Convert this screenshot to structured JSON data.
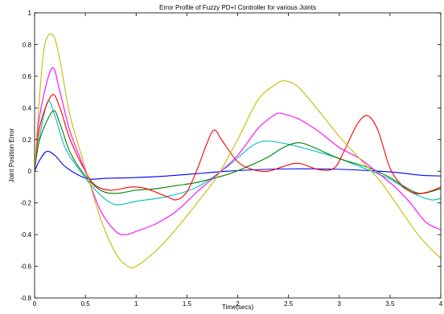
{
  "chart_data": {
    "type": "line",
    "title": "Error Profile of Fuzzy PD+I  Controller for various Joints",
    "xlabel": "Time(secs)",
    "ylabel": "Joint Position Error",
    "xlim": [
      0,
      4
    ],
    "ylim": [
      -0.8,
      1
    ],
    "xticks": [
      0,
      0.5,
      1,
      1.5,
      2,
      2.5,
      3,
      3.5,
      4
    ],
    "xtick_labels": [
      "0",
      "0.5",
      "1",
      "1.5",
      "2",
      "2.5",
      "3",
      "3.5",
      "4"
    ],
    "yticks": [
      -0.8,
      -0.6,
      -0.4,
      -0.2,
      0,
      0.2,
      0.4,
      0.6,
      0.8,
      1
    ],
    "ytick_labels": [
      "-0.8",
      "-0.6",
      "-0.4",
      "-0.2",
      "0",
      "0.2",
      "0.4",
      "0.6",
      "0.8",
      "1"
    ],
    "grid": false,
    "legend": "none",
    "series": [
      {
        "color": "#0000ff",
        "points": [
          [
            0,
            0
          ],
          [
            0.05,
            0.07
          ],
          [
            0.12,
            0.125
          ],
          [
            0.2,
            0.1
          ],
          [
            0.3,
            0.03
          ],
          [
            0.45,
            -0.03
          ],
          [
            0.55,
            -0.05
          ],
          [
            0.7,
            -0.045
          ],
          [
            1.0,
            -0.04
          ],
          [
            1.3,
            -0.03
          ],
          [
            1.6,
            -0.015
          ],
          [
            1.9,
            0
          ],
          [
            2.2,
            0.01
          ],
          [
            2.5,
            0.015
          ],
          [
            2.8,
            0.015
          ],
          [
            3.1,
            0.01
          ],
          [
            3.4,
            0
          ],
          [
            3.6,
            -0.01
          ],
          [
            3.8,
            -0.025
          ],
          [
            4.0,
            -0.03
          ]
        ]
      },
      {
        "color": "#00bfbf",
        "points": [
          [
            0,
            0
          ],
          [
            0.05,
            0.22
          ],
          [
            0.13,
            0.44
          ],
          [
            0.2,
            0.35
          ],
          [
            0.3,
            0.15
          ],
          [
            0.45,
            0
          ],
          [
            0.6,
            -0.12
          ],
          [
            0.75,
            -0.2
          ],
          [
            0.85,
            -0.21
          ],
          [
            1.0,
            -0.19
          ],
          [
            1.3,
            -0.16
          ],
          [
            1.6,
            -0.1
          ],
          [
            1.9,
            0.03
          ],
          [
            2.1,
            0.14
          ],
          [
            2.2,
            0.18
          ],
          [
            2.3,
            0.19
          ],
          [
            2.5,
            0.17
          ],
          [
            2.8,
            0.12
          ],
          [
            3.0,
            0.08
          ],
          [
            3.2,
            0.03
          ],
          [
            3.5,
            -0.05
          ],
          [
            3.7,
            -0.13
          ],
          [
            3.9,
            -0.18
          ],
          [
            4.0,
            -0.17
          ]
        ]
      },
      {
        "color": "#008000",
        "points": [
          [
            0,
            0
          ],
          [
            0.05,
            0.2
          ],
          [
            0.18,
            0.38
          ],
          [
            0.25,
            0.3
          ],
          [
            0.35,
            0.12
          ],
          [
            0.5,
            -0.03
          ],
          [
            0.65,
            -0.12
          ],
          [
            0.8,
            -0.14
          ],
          [
            1.0,
            -0.12
          ],
          [
            1.2,
            -0.11
          ],
          [
            1.4,
            -0.09
          ],
          [
            1.6,
            -0.07
          ],
          [
            1.9,
            -0.02
          ],
          [
            2.1,
            0.03
          ],
          [
            2.3,
            0.09
          ],
          [
            2.45,
            0.15
          ],
          [
            2.6,
            0.18
          ],
          [
            2.75,
            0.15
          ],
          [
            3.0,
            0.08
          ],
          [
            3.3,
            0.02
          ],
          [
            3.5,
            -0.04
          ],
          [
            3.65,
            -0.1
          ],
          [
            3.8,
            -0.14
          ],
          [
            4.0,
            -0.11
          ]
        ]
      },
      {
        "color": "#ff0000",
        "points": [
          [
            0,
            0
          ],
          [
            0.05,
            0.28
          ],
          [
            0.17,
            0.48
          ],
          [
            0.25,
            0.4
          ],
          [
            0.35,
            0.2
          ],
          [
            0.5,
            0
          ],
          [
            0.6,
            -0.09
          ],
          [
            0.75,
            -0.12
          ],
          [
            0.95,
            -0.1
          ],
          [
            1.1,
            -0.11
          ],
          [
            1.3,
            -0.16
          ],
          [
            1.4,
            -0.18
          ],
          [
            1.5,
            -0.13
          ],
          [
            1.6,
            0.01
          ],
          [
            1.7,
            0.18
          ],
          [
            1.77,
            0.26
          ],
          [
            1.85,
            0.19
          ],
          [
            2.0,
            0.06
          ],
          [
            2.15,
            0.01
          ],
          [
            2.3,
            0
          ],
          [
            2.45,
            0.03
          ],
          [
            2.6,
            0.05
          ],
          [
            2.8,
            0.01
          ],
          [
            2.95,
            0.02
          ],
          [
            3.05,
            0.13
          ],
          [
            3.18,
            0.3
          ],
          [
            3.28,
            0.35
          ],
          [
            3.38,
            0.26
          ],
          [
            3.5,
            0.02
          ],
          [
            3.62,
            -0.09
          ],
          [
            3.75,
            -0.14
          ],
          [
            3.88,
            -0.13
          ],
          [
            4.0,
            -0.1
          ]
        ]
      },
      {
        "color": "#ff00ff",
        "points": [
          [
            0,
            0
          ],
          [
            0.05,
            0.35
          ],
          [
            0.17,
            0.65
          ],
          [
            0.25,
            0.5
          ],
          [
            0.35,
            0.25
          ],
          [
            0.5,
            0
          ],
          [
            0.65,
            -0.25
          ],
          [
            0.8,
            -0.38
          ],
          [
            0.9,
            -0.4
          ],
          [
            1.0,
            -0.38
          ],
          [
            1.2,
            -0.33
          ],
          [
            1.4,
            -0.25
          ],
          [
            1.6,
            -0.13
          ],
          [
            1.8,
            -0.02
          ],
          [
            2.0,
            0.1
          ],
          [
            2.2,
            0.27
          ],
          [
            2.35,
            0.35
          ],
          [
            2.42,
            0.365
          ],
          [
            2.6,
            0.33
          ],
          [
            2.8,
            0.25
          ],
          [
            3.0,
            0.15
          ],
          [
            3.2,
            0.08
          ],
          [
            3.4,
            -0.02
          ],
          [
            3.55,
            -0.1
          ],
          [
            3.7,
            -0.2
          ],
          [
            3.85,
            -0.32
          ],
          [
            4.0,
            -0.37
          ]
        ]
      },
      {
        "color": "#bfbf00",
        "points": [
          [
            0,
            0
          ],
          [
            0.05,
            0.48
          ],
          [
            0.1,
            0.8
          ],
          [
            0.18,
            0.86
          ],
          [
            0.25,
            0.7
          ],
          [
            0.35,
            0.35
          ],
          [
            0.5,
            0.02
          ],
          [
            0.65,
            -0.3
          ],
          [
            0.8,
            -0.52
          ],
          [
            0.92,
            -0.6
          ],
          [
            1.0,
            -0.6
          ],
          [
            1.2,
            -0.5
          ],
          [
            1.4,
            -0.36
          ],
          [
            1.6,
            -0.2
          ],
          [
            1.8,
            -0.03
          ],
          [
            2.0,
            0.2
          ],
          [
            2.2,
            0.45
          ],
          [
            2.38,
            0.55
          ],
          [
            2.47,
            0.57
          ],
          [
            2.6,
            0.53
          ],
          [
            2.8,
            0.38
          ],
          [
            3.0,
            0.22
          ],
          [
            3.2,
            0.08
          ],
          [
            3.4,
            -0.06
          ],
          [
            3.6,
            -0.24
          ],
          [
            3.8,
            -0.42
          ],
          [
            4.0,
            -0.55
          ]
        ]
      }
    ]
  }
}
